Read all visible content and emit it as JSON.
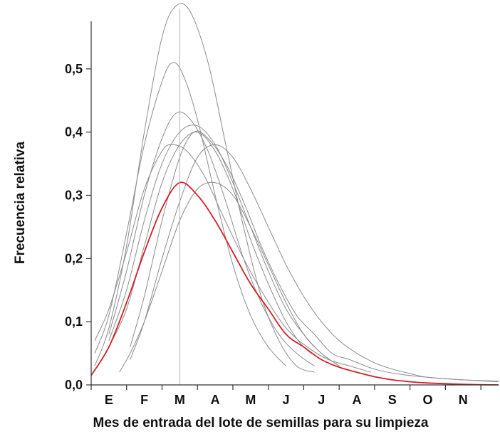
{
  "chart_data": {
    "type": "line",
    "title": "",
    "xlabel": "Mes de entrada del lote de semillas para su limpieza",
    "ylabel": "Frecuencia relativa",
    "x_tick_labels": [
      "E",
      "F",
      "M",
      "A",
      "M",
      "J",
      "J",
      "A",
      "S",
      "O",
      "N"
    ],
    "y_tick_labels": [
      "0,0",
      "0,1",
      "0,2",
      "0,3",
      "0,4",
      "0,5"
    ],
    "y_ticks": [
      0.0,
      0.1,
      0.2,
      0.3,
      0.4,
      0.5
    ],
    "xlim": [
      0.5,
      12.0
    ],
    "ylim": [
      0.0,
      0.6
    ],
    "grid": false,
    "reference_line_x": 3.0,
    "highlight_color": "#d4202a",
    "series_color": "#8c8c8c",
    "series": [
      {
        "highlight": false,
        "x": [
          0.6,
          1.0,
          1.5,
          2.0,
          2.5,
          2.9,
          3.3,
          3.8,
          4.3,
          4.8,
          5.3,
          5.8,
          6.3,
          6.8
        ],
        "y": [
          0.03,
          0.09,
          0.22,
          0.4,
          0.55,
          0.6,
          0.59,
          0.51,
          0.38,
          0.25,
          0.14,
          0.07,
          0.03,
          0.02
        ]
      },
      {
        "highlight": false,
        "x": [
          0.6,
          1.0,
          1.5,
          2.0,
          2.5,
          2.8,
          3.1,
          3.5,
          4.0,
          4.5,
          5.0,
          5.5,
          6.0
        ],
        "y": [
          0.05,
          0.11,
          0.24,
          0.38,
          0.48,
          0.51,
          0.49,
          0.42,
          0.3,
          0.19,
          0.11,
          0.06,
          0.03
        ]
      },
      {
        "highlight": false,
        "x": [
          1.0,
          1.5,
          2.0,
          2.5,
          2.9,
          3.3,
          3.8,
          4.3,
          4.8,
          5.3,
          5.8,
          6.3,
          6.8
        ],
        "y": [
          0.08,
          0.18,
          0.3,
          0.39,
          0.43,
          0.42,
          0.37,
          0.29,
          0.2,
          0.13,
          0.08,
          0.05,
          0.03
        ]
      },
      {
        "highlight": false,
        "x": [
          1.0,
          1.5,
          2.0,
          2.5,
          3.0,
          3.5,
          4.0,
          4.5,
          5.0,
          5.5,
          6.0,
          6.5,
          7.0,
          7.5
        ],
        "y": [
          0.07,
          0.15,
          0.26,
          0.35,
          0.4,
          0.41,
          0.38,
          0.32,
          0.25,
          0.18,
          0.12,
          0.08,
          0.05,
          0.03
        ]
      },
      {
        "highlight": false,
        "x": [
          1.0,
          1.5,
          2.0,
          2.5,
          3.0,
          3.5,
          4.0,
          4.5,
          5.0,
          5.5,
          6.0,
          6.5,
          7.0
        ],
        "y": [
          0.06,
          0.12,
          0.22,
          0.32,
          0.38,
          0.4,
          0.37,
          0.31,
          0.23,
          0.16,
          0.1,
          0.06,
          0.04
        ]
      },
      {
        "highlight": false,
        "x": [
          0.6,
          1.0,
          1.5,
          2.0,
          2.5,
          2.8,
          3.2,
          3.7,
          4.2,
          4.8,
          5.4,
          6.0,
          6.6,
          7.2,
          7.8,
          8.4
        ],
        "y": [
          0.07,
          0.12,
          0.21,
          0.31,
          0.37,
          0.38,
          0.37,
          0.33,
          0.27,
          0.2,
          0.14,
          0.09,
          0.06,
          0.04,
          0.03,
          0.02
        ]
      },
      {
        "highlight": false,
        "x": [
          1.3,
          1.6,
          2.0,
          2.5,
          3.0,
          3.5,
          4.0,
          4.5,
          5.0,
          5.5,
          6.0,
          6.5,
          7.0,
          7.5
        ],
        "y": [
          0.02,
          0.05,
          0.1,
          0.18,
          0.26,
          0.31,
          0.32,
          0.3,
          0.25,
          0.19,
          0.13,
          0.08,
          0.05,
          0.03
        ]
      },
      {
        "highlight": false,
        "x": [
          1.6,
          2.0,
          2.5,
          3.0,
          3.5,
          4.0,
          4.5,
          5.0,
          5.5,
          6.0,
          6.5,
          7.0,
          7.5,
          8.0,
          8.5,
          9.0,
          9.5,
          10.0,
          11.0,
          12.0
        ],
        "y": [
          0.04,
          0.1,
          0.2,
          0.29,
          0.36,
          0.38,
          0.36,
          0.31,
          0.25,
          0.19,
          0.14,
          0.1,
          0.07,
          0.05,
          0.035,
          0.025,
          0.018,
          0.012,
          0.008,
          0.005
        ]
      },
      {
        "highlight": false,
        "x": [
          1.6,
          2.0,
          2.5,
          3.0,
          3.4,
          3.8,
          4.3,
          4.8,
          5.3,
          5.8,
          6.3,
          6.8,
          7.3,
          7.8,
          8.5,
          9.2,
          10.0,
          11.0,
          12.0
        ],
        "y": [
          0.06,
          0.14,
          0.26,
          0.36,
          0.4,
          0.39,
          0.35,
          0.29,
          0.22,
          0.16,
          0.11,
          0.08,
          0.05,
          0.04,
          0.025,
          0.017,
          0.012,
          0.008,
          0.006
        ]
      },
      {
        "highlight": true,
        "x": [
          0.5,
          1.0,
          1.5,
          2.0,
          2.5,
          3.0,
          3.5,
          4.0,
          4.5,
          5.0,
          5.5,
          6.0,
          6.5,
          7.0,
          7.5,
          8.0,
          8.5,
          9.0,
          9.5,
          10.0,
          11.0,
          12.0
        ],
        "y": [
          0.015,
          0.06,
          0.13,
          0.21,
          0.28,
          0.32,
          0.3,
          0.26,
          0.21,
          0.16,
          0.12,
          0.08,
          0.06,
          0.04,
          0.028,
          0.02,
          0.013,
          0.008,
          0.005,
          0.003,
          0.001,
          0.0
        ]
      }
    ]
  }
}
